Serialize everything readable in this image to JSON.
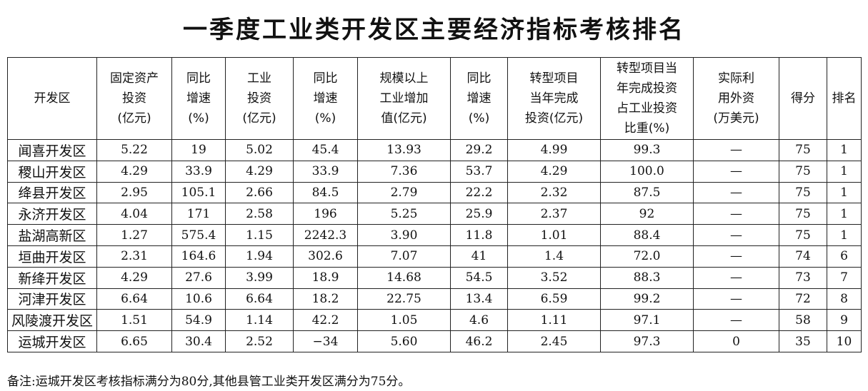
{
  "header": {
    "title": "一季度工业类开发区主要经济指标考核排名"
  },
  "table": {
    "columns": [
      [
        "开发区"
      ],
      [
        "固定资产",
        "投资",
        "(亿元)"
      ],
      [
        "同比",
        "增速",
        "(%)"
      ],
      [
        "工业",
        "投资",
        "(亿元)"
      ],
      [
        "同比",
        "增速",
        "(%)"
      ],
      [
        "规模以上",
        "工业增加",
        "值(亿元)"
      ],
      [
        "同比",
        "增速",
        "(%)"
      ],
      [
        "转型项目",
        "当年完成",
        "投资(亿元)"
      ],
      [
        "转型项目当",
        "年完成投资",
        "占工业投资",
        "比重(%)"
      ],
      [
        "实际利",
        "用外资",
        "(万美元)"
      ],
      [
        "得分"
      ],
      [
        "排名"
      ]
    ],
    "rows": [
      [
        "闻喜开发区",
        "5.22",
        "19",
        "5.02",
        "45.4",
        "13.93",
        "29.2",
        "4.99",
        "99.3",
        "—",
        "75",
        "1"
      ],
      [
        "稷山开发区",
        "4.29",
        "33.9",
        "4.29",
        "33.9",
        "7.36",
        "53.7",
        "4.29",
        "100.0",
        "—",
        "75",
        "1"
      ],
      [
        "绛县开发区",
        "2.95",
        "105.1",
        "2.66",
        "84.5",
        "2.79",
        "22.2",
        "2.32",
        "87.5",
        "—",
        "75",
        "1"
      ],
      [
        "永济开发区",
        "4.04",
        "171",
        "2.58",
        "196",
        "5.25",
        "25.9",
        "2.37",
        "92",
        "—",
        "75",
        "1"
      ],
      [
        "盐湖高新区",
        "1.27",
        "575.4",
        "1.15",
        "2242.3",
        "3.90",
        "11.8",
        "1.01",
        "88.4",
        "—",
        "75",
        "1"
      ],
      [
        "垣曲开发区",
        "2.31",
        "164.6",
        "1.94",
        "302.6",
        "7.07",
        "41",
        "1.4",
        "72.0",
        "—",
        "74",
        "6"
      ],
      [
        "新绛开发区",
        "4.29",
        "27.6",
        "3.99",
        "18.9",
        "14.68",
        "54.5",
        "3.52",
        "88.3",
        "—",
        "73",
        "7"
      ],
      [
        "河津开发区",
        "6.64",
        "10.6",
        "6.64",
        "18.2",
        "22.75",
        "13.4",
        "6.59",
        "99.2",
        "—",
        "72",
        "8"
      ],
      [
        "风陵渡开发区",
        "1.51",
        "54.9",
        "1.14",
        "42.2",
        "1.05",
        "4.6",
        "1.11",
        "97.1",
        "—",
        "58",
        "9"
      ],
      [
        "运城开发区",
        "6.65",
        "30.4",
        "2.52",
        "−34",
        "5.60",
        "46.2",
        "2.45",
        "97.3",
        "0",
        "35",
        "10"
      ]
    ]
  },
  "footer": {
    "note": "备注:运城开发区考核指标满分为80分,其他县管工业类开发区满分为75分。"
  }
}
